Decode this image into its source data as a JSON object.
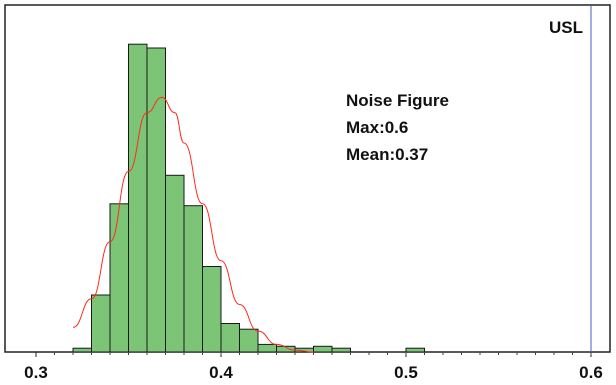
{
  "chart_data": {
    "type": "histogram",
    "title": "",
    "xlabel": "",
    "ylabel": "",
    "xlim": [
      0.3,
      0.62
    ],
    "ylim": [
      0,
      168
    ],
    "grid": false,
    "bin_width": 0.01,
    "bins": [
      {
        "x0": 0.32,
        "x1": 0.33,
        "count": 2
      },
      {
        "x0": 0.33,
        "x1": 0.34,
        "count": 30
      },
      {
        "x0": 0.34,
        "x1": 0.35,
        "count": 78
      },
      {
        "x0": 0.35,
        "x1": 0.36,
        "count": 162
      },
      {
        "x0": 0.36,
        "x1": 0.37,
        "count": 160
      },
      {
        "x0": 0.37,
        "x1": 0.38,
        "count": 93
      },
      {
        "x0": 0.38,
        "x1": 0.39,
        "count": 77
      },
      {
        "x0": 0.39,
        "x1": 0.4,
        "count": 45
      },
      {
        "x0": 0.4,
        "x1": 0.41,
        "count": 15
      },
      {
        "x0": 0.41,
        "x1": 0.42,
        "count": 12
      },
      {
        "x0": 0.42,
        "x1": 0.43,
        "count": 4
      },
      {
        "x0": 0.43,
        "x1": 0.44,
        "count": 3
      },
      {
        "x0": 0.44,
        "x1": 0.45,
        "count": 2
      },
      {
        "x0": 0.45,
        "x1": 0.46,
        "count": 3
      },
      {
        "x0": 0.46,
        "x1": 0.47,
        "count": 2
      },
      {
        "x0": 0.5,
        "x1": 0.51,
        "count": 2
      }
    ],
    "fit_curve": {
      "type": "normal",
      "points": [
        [
          0.32,
          13
        ],
        [
          0.33,
          28
        ],
        [
          0.34,
          58
        ],
        [
          0.35,
          95
        ],
        [
          0.36,
          126
        ],
        [
          0.368,
          134
        ],
        [
          0.375,
          126
        ],
        [
          0.38,
          110
        ],
        [
          0.39,
          78
        ],
        [
          0.4,
          48
        ],
        [
          0.41,
          25
        ],
        [
          0.42,
          11
        ],
        [
          0.43,
          4
        ],
        [
          0.44,
          1
        ],
        [
          0.45,
          0
        ]
      ],
      "color": "#ff2a1a"
    },
    "reference_lines": [
      {
        "label": "USL",
        "x": 0.6,
        "color": "#4a5ec4"
      }
    ],
    "x_ticks": [
      0.3,
      0.4,
      0.5,
      0.6
    ],
    "x_tick_labels": [
      "0.3",
      "0.4",
      "0.5",
      "0.6"
    ],
    "annotation_lines": [
      "Noise Figure",
      "Max:0.6",
      "Mean:0.37"
    ],
    "colors": {
      "bar_fill": "#7cc576",
      "bar_stroke": "#1a1a1a",
      "frame": "#222222"
    }
  }
}
